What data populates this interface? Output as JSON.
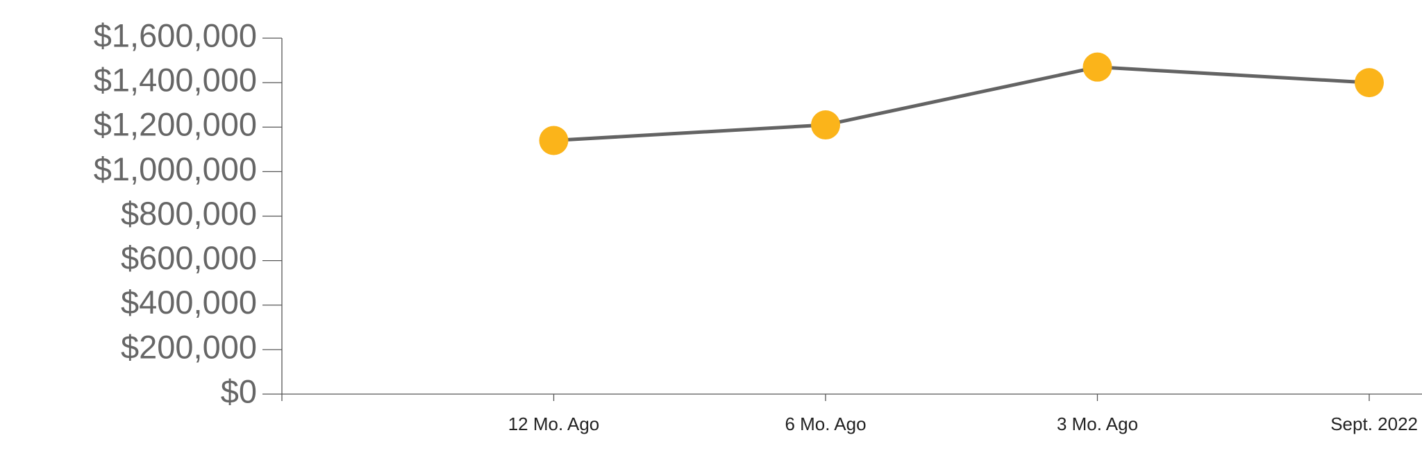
{
  "chart_data": {
    "type": "line",
    "categories": [
      null,
      "12 Mo. Ago",
      "6 Mo. Ago",
      "3 Mo. Ago",
      "Sept. 2022"
    ],
    "values": [
      null,
      1140000,
      1210000,
      1470000,
      1400000
    ],
    "line_color": "#636363",
    "marker_color": "#fbb41a",
    "ylim": [
      0,
      1600000
    ],
    "yticks": [
      {
        "value": 0,
        "label": "$0"
      },
      {
        "value": 200000,
        "label": "$200,000"
      },
      {
        "value": 400000,
        "label": "$400,000"
      },
      {
        "value": 600000,
        "label": "$600,000"
      },
      {
        "value": 800000,
        "label": "$800,000"
      },
      {
        "value": 1000000,
        "label": "$1,000,000"
      },
      {
        "value": 1200000,
        "label": "$1,200,000"
      },
      {
        "value": 1400000,
        "label": "$1,400,000"
      },
      {
        "value": 1600000,
        "label": "$1,600,000"
      }
    ],
    "grid": false
  }
}
